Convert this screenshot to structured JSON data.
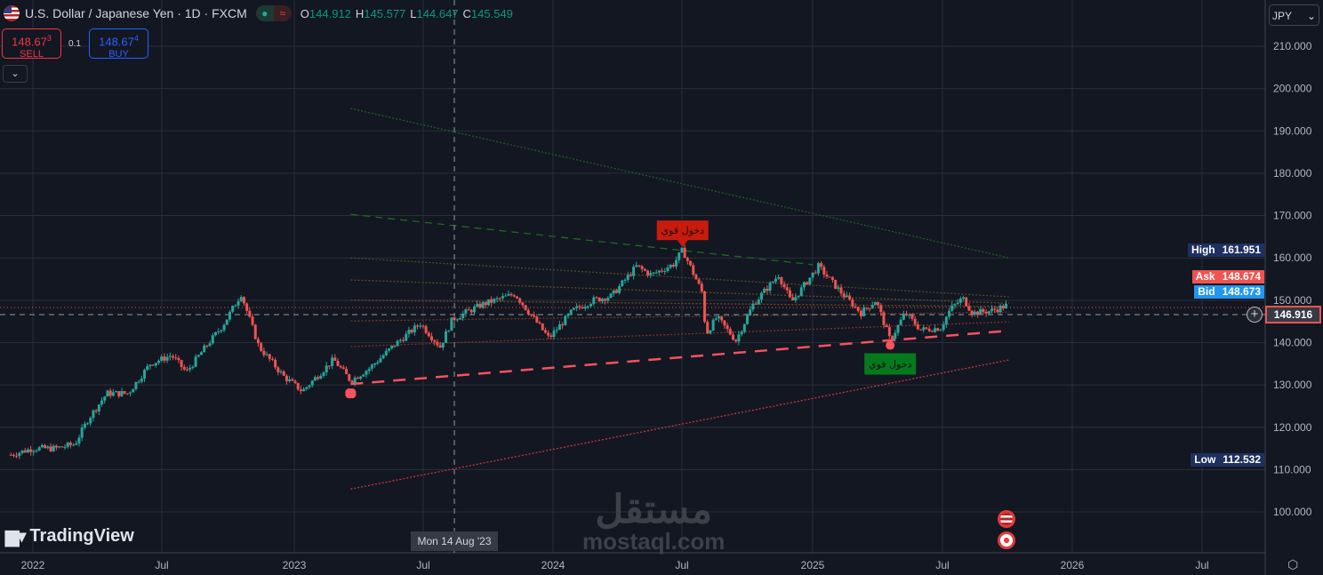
{
  "header": {
    "title": "U.S. Dollar / Japanese Yen · 1D · FXCM",
    "ohlc": {
      "o": "144.912",
      "h": "145.577",
      "l": "144.647",
      "c": "145.549"
    },
    "o_label": "O",
    "h_label": "H",
    "l_label": "L",
    "c_label": "C",
    "status_icon": "market-open-dot",
    "delay_icon": "≈"
  },
  "trade": {
    "sell_price": "148.67",
    "sell_sup": "3",
    "sell_label": "SELL",
    "spread": "0.1",
    "buy_price": "148.67",
    "buy_sup": "4",
    "buy_label": "BUY",
    "expand_icon": "⌄"
  },
  "currency": "JPY",
  "price_labels": {
    "high_label": "High",
    "high": "161.951",
    "ask_label": "Ask",
    "ask": "148.674",
    "bid_label": "Bid",
    "bid": "148.673",
    "crosshair": "146.916",
    "low_label": "Low",
    "low": "112.532"
  },
  "crosshair_date": "Mon 14 Aug '23",
  "logo": "TradingView",
  "watermark": {
    "arabic": "مستقل",
    "latin": "mostaql.com"
  },
  "colors": {
    "up": "#26a69a",
    "down": "#ef5350",
    "bg": "#131722",
    "grid": "#2a2e39",
    "support": "#f7525f",
    "signal_sell": "#c81b0e",
    "signal_buy": "#047a1c"
  },
  "chart_data": {
    "type": "candlestick",
    "symbol": "USDJPY",
    "interval": "1D",
    "ylim": [
      90,
      215
    ],
    "y_ticks": [
      "210.000",
      "200.000",
      "190.000",
      "180.000",
      "170.000",
      "160.000",
      "150.000",
      "140.000",
      "130.000",
      "120.000",
      "110.000",
      "100.000"
    ],
    "x_ticks": [
      "2022",
      "Jul",
      "2023",
      "Jul",
      "2024",
      "Jul",
      "2025",
      "Jul",
      "2026",
      "Jul"
    ],
    "grid": true,
    "monthly_close": [
      [
        "2021-12-01",
        113.5
      ],
      [
        "2022-01-01",
        115
      ],
      [
        "2022-02-01",
        115
      ],
      [
        "2022-03-01",
        116
      ],
      [
        "2022-03-20",
        122
      ],
      [
        "2022-04-15",
        128
      ],
      [
        "2022-05-15",
        128
      ],
      [
        "2022-06-15",
        135
      ],
      [
        "2022-07-15",
        137
      ],
      [
        "2022-08-05",
        133
      ],
      [
        "2022-09-01",
        139
      ],
      [
        "2022-09-25",
        144
      ],
      [
        "2022-10-21",
        151.5
      ],
      [
        "2022-11-15",
        139
      ],
      [
        "2022-12-20",
        132
      ],
      [
        "2023-01-15",
        128.5
      ],
      [
        "2023-02-28",
        136
      ],
      [
        "2023-03-24",
        131
      ],
      [
        "2023-04-20",
        134
      ],
      [
        "2023-05-25",
        139.5
      ],
      [
        "2023-06-30",
        144.5
      ],
      [
        "2023-07-28",
        139
      ],
      [
        "2023-08-14",
        145.5
      ],
      [
        "2023-09-25",
        149
      ],
      [
        "2023-11-10",
        151.5
      ],
      [
        "2023-12-28",
        141
      ],
      [
        "2024-01-30",
        147.5
      ],
      [
        "2024-02-28",
        150
      ],
      [
        "2024-03-25",
        151
      ],
      [
        "2024-04-29",
        158
      ],
      [
        "2024-05-20",
        156
      ],
      [
        "2024-06-20",
        158.5
      ],
      [
        "2024-07-03",
        161.9
      ],
      [
        "2024-07-30",
        152
      ],
      [
        "2024-08-05",
        142
      ],
      [
        "2024-08-20",
        146
      ],
      [
        "2024-09-16",
        140.5
      ],
      [
        "2024-10-10",
        149
      ],
      [
        "2024-11-15",
        156
      ],
      [
        "2024-12-03",
        149.5
      ],
      [
        "2025-01-10",
        158
      ],
      [
        "2025-02-10",
        152
      ],
      [
        "2025-03-11",
        147
      ],
      [
        "2025-04-01",
        150
      ],
      [
        "2025-04-21",
        140.5
      ],
      [
        "2025-05-12",
        147
      ],
      [
        "2025-06-03",
        143
      ],
      [
        "2025-07-01",
        143.5
      ],
      [
        "2025-07-15",
        148
      ],
      [
        "2025-08-01",
        150.5
      ],
      [
        "2025-08-15",
        147
      ],
      [
        "2025-09-10",
        147.5
      ],
      [
        "2025-10-01",
        148.7
      ]
    ],
    "drawings": [
      {
        "kind": "trendline",
        "style": "dashed-thick",
        "color": "#f7525f",
        "from": [
          "2023-03-24",
          130.2
        ],
        "to": [
          "2025-10-05",
          142.8
        ]
      },
      {
        "kind": "trendline",
        "style": "dotted",
        "color": "#c23a3a",
        "from": [
          "2023-03-24",
          105.4
        ],
        "to": [
          "2025-10-05",
          135.9
        ]
      },
      {
        "kind": "trendline",
        "style": "dotted",
        "color": "#1b5e20",
        "from": [
          "2023-03-24",
          195.3
        ],
        "to": [
          "2025-10-05",
          160.0
        ]
      },
      {
        "kind": "trendline",
        "style": "dashed",
        "color": "#1e6b1e",
        "from": [
          "2023-03-24",
          170.3
        ],
        "to": [
          "2025-01-02",
          158.4
        ]
      },
      {
        "kind": "trendline",
        "style": "dotted",
        "color": "#4a4a22",
        "from": [
          "2023-03-24",
          160.0
        ],
        "to": [
          "2025-10-05",
          150.8
        ]
      },
      {
        "kind": "trendline",
        "style": "dotted",
        "color": "#5a4a22",
        "from": [
          "2023-03-24",
          154.8
        ],
        "to": [
          "2025-10-05",
          149.3
        ]
      },
      {
        "kind": "trendline",
        "style": "dotted",
        "color": "#6a4a22",
        "from": [
          "2023-03-24",
          150.0
        ],
        "to": [
          "2025-10-05",
          148.5
        ]
      },
      {
        "kind": "trendline",
        "style": "dotted",
        "color": "#6a3a22",
        "from": [
          "2023-03-24",
          145.1
        ],
        "to": [
          "2025-10-05",
          147.2
        ]
      },
      {
        "kind": "trendline",
        "style": "dotted",
        "color": "#7a3322",
        "from": [
          "2023-03-24",
          139.05
        ],
        "to": [
          "2025-10-05",
          144.9
        ]
      }
    ],
    "signals": [
      {
        "type": "sell",
        "text": "دخول قوي",
        "date": "2024-07-03",
        "price": 161.9
      },
      {
        "type": "buy",
        "text": "دخول قوي",
        "date": "2025-04-21",
        "price": 140.2
      },
      {
        "type": "marker",
        "date": "2023-03-24",
        "price": 130.2
      }
    ]
  }
}
